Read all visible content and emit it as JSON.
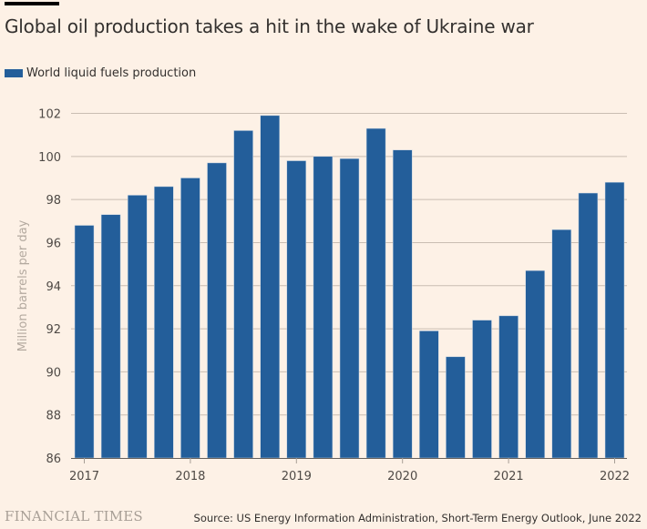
{
  "header": {
    "title": "Global oil production takes a hit in the wake of Ukraine war"
  },
  "legend": {
    "label": "World liquid fuels production",
    "color": "#235e9a"
  },
  "footer": {
    "brand": "FINANCIAL TIMES",
    "source": "Source: US Energy Information Administration, Short-Term Energy Outlook, June 2022"
  },
  "chart_data": {
    "type": "bar",
    "title": "Global oil production takes a hit in the wake of Ukraine war",
    "xlabel": "",
    "ylabel": "Million barrels per day",
    "ylim": [
      86,
      102
    ],
    "yticks": [
      86,
      88,
      90,
      92,
      94,
      96,
      98,
      100,
      102
    ],
    "xticks": [
      "2017",
      "2018",
      "2019",
      "2020",
      "2021",
      "2022"
    ],
    "grid": true,
    "legend_position": "top-left",
    "categories": [
      "2017 Q1",
      "2017 Q2",
      "2017 Q3",
      "2017 Q4",
      "2018 Q1",
      "2018 Q2",
      "2018 Q3",
      "2018 Q4",
      "2019 Q1",
      "2019 Q2",
      "2019 Q3",
      "2019 Q4",
      "2020 Q1",
      "2020 Q2",
      "2020 Q3",
      "2020 Q4",
      "2021 Q1",
      "2021 Q2",
      "2021 Q3",
      "2021 Q4",
      "2022 Q1"
    ],
    "series": [
      {
        "name": "World liquid fuels production",
        "color": "#235e9a",
        "values": [
          96.8,
          97.3,
          98.2,
          98.6,
          99.0,
          99.7,
          101.2,
          101.9,
          99.8,
          100.0,
          99.9,
          101.3,
          100.3,
          91.9,
          90.7,
          92.4,
          92.6,
          94.7,
          96.6,
          98.3,
          98.8
        ]
      }
    ]
  }
}
